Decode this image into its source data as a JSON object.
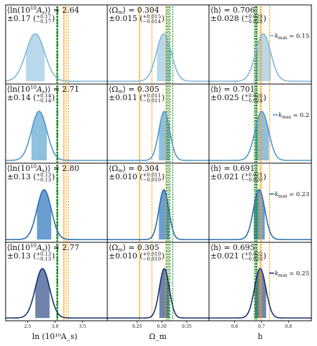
{
  "chart_data": {
    "type": "posterior-grid",
    "rows": [
      {
        "kmax_label": "0.15",
        "fill_color": "#b9d8ec",
        "line_color": "#7fb6d6",
        "panels": [
          {
            "stat_line1_prefix": "⟨ln(10",
            "stat_line1_value": "2.64",
            "stat_line2": "±0.17",
            "ci_upper": "+0.17",
            "ci_lower": "−0.17",
            "mean": 2.64,
            "sigma": 0.17,
            "ci_low": 2.47,
            "ci_high": 2.81
          },
          {
            "stat_line1_prefix": "⟨Ω",
            "stat_line1_value": "0.304",
            "stat_line2": "±0.015",
            "ci_upper": "+0.015",
            "ci_lower": "−0.014",
            "mean": 0.304,
            "sigma": 0.015,
            "ci_low": 0.29,
            "ci_high": 0.319
          },
          {
            "stat_line1_prefix": "⟨h⟩",
            "stat_line1_value": "0.706",
            "stat_line2": "±0.028",
            "ci_upper": "+0.029",
            "ci_lower": "−0.028",
            "mean": 0.706,
            "sigma": 0.028,
            "ci_low": 0.678,
            "ci_high": 0.735
          }
        ]
      },
      {
        "kmax_label": "0.2",
        "fill_color": "#8fc0e0",
        "line_color": "#4d97c9",
        "panels": [
          {
            "stat_line1_prefix": "⟨ln(10",
            "stat_line1_value": "2.71",
            "stat_line2": "±0.14",
            "ci_upper": "+0.14",
            "ci_lower": "−0.14",
            "mean": 2.71,
            "sigma": 0.14,
            "ci_low": 2.57,
            "ci_high": 2.85
          },
          {
            "stat_line1_prefix": "⟨Ω",
            "stat_line1_value": "0.305",
            "stat_line2": "±0.011",
            "ci_upper": "+0.011",
            "ci_lower": "−0.011",
            "mean": 0.305,
            "sigma": 0.011,
            "ci_low": 0.294,
            "ci_high": 0.316
          },
          {
            "stat_line1_prefix": "⟨h⟩",
            "stat_line1_value": "0.701",
            "stat_line2": "±0.025",
            "ci_upper": "+0.026",
            "ci_lower": "−0.024",
            "mean": 0.701,
            "sigma": 0.025,
            "ci_low": 0.677,
            "ci_high": 0.727
          }
        ]
      },
      {
        "kmax_label": "0.23",
        "fill_color": "#6b9ed0",
        "line_color": "#2a6bb0",
        "panels": [
          {
            "stat_line1_prefix": "⟨ln(10",
            "stat_line1_value": "2.80",
            "stat_line2": "±0.13",
            "ci_upper": "+0.13",
            "ci_lower": "−0.13",
            "mean": 2.8,
            "sigma": 0.13,
            "ci_low": 2.67,
            "ci_high": 2.93
          },
          {
            "stat_line1_prefix": "⟨Ω",
            "stat_line1_value": "0.304",
            "stat_line2": "±0.010",
            "ci_upper": "+0.011",
            "ci_lower": "−0.010",
            "mean": 0.304,
            "sigma": 0.01,
            "ci_low": 0.294,
            "ci_high": 0.315
          },
          {
            "stat_line1_prefix": "⟨h⟩",
            "stat_line1_value": "0.691",
            "stat_line2": "±0.021",
            "ci_upper": "+0.021",
            "ci_lower": "−0.020",
            "mean": 0.691,
            "sigma": 0.021,
            "ci_low": 0.671,
            "ci_high": 0.712
          }
        ]
      },
      {
        "kmax_label": "0.25",
        "fill_color": "#6f83ad",
        "line_color": "#13306b",
        "panels": [
          {
            "stat_line1_prefix": "⟨ln(10",
            "stat_line1_value": "2.77",
            "stat_line2": "±0.13",
            "ci_upper": "+0.13",
            "ci_lower": "−0.13",
            "mean": 2.77,
            "sigma": 0.13,
            "ci_low": 2.64,
            "ci_high": 2.9
          },
          {
            "stat_line1_prefix": "⟨Ω",
            "stat_line1_value": "0.305",
            "stat_line2": "±0.010",
            "ci_upper": "+0.010",
            "ci_lower": "−0.010",
            "mean": 0.305,
            "sigma": 0.01,
            "ci_low": 0.295,
            "ci_high": 0.315
          },
          {
            "stat_line1_prefix": "⟨h⟩",
            "stat_line1_value": "0.695",
            "stat_line2": "±0.021",
            "ci_upper": "+0.022",
            "ci_lower": "−0.020",
            "mean": 0.695,
            "sigma": 0.021,
            "ci_low": 0.675,
            "ci_high": 0.717
          }
        ]
      }
    ],
    "columns": [
      {
        "xlabel": "ln (10¹⁰A_s)",
        "xlim": [
          2.1,
          3.95
        ],
        "ticks": [
          2.5,
          3.0,
          3.5
        ],
        "tick_labels": [
          "2.5",
          "3.0",
          "3.5"
        ],
        "green_lines": [
          3.03,
          3.04,
          3.045,
          3.05
        ],
        "orange_lines": [
          3.16,
          3.2,
          3.24
        ]
      },
      {
        "xlabel": "Ω_m",
        "xlim": [
          0.19,
          0.395
        ],
        "ticks": [
          0.25,
          0.3,
          0.35
        ],
        "tick_labels": [
          "0.25",
          "0.30",
          "0.35"
        ],
        "green_lines": [
          0.31,
          0.313,
          0.316,
          0.322
        ],
        "orange_lines": [
          0.255,
          0.28,
          0.308
        ]
      },
      {
        "xlabel": "h",
        "xlim": [
          0.505,
          0.885
        ],
        "ticks": [
          0.6,
          0.7,
          0.8
        ],
        "tick_labels": [
          "0.6",
          "0.7",
          "0.8"
        ],
        "green_lines": [
          0.674,
          0.678,
          0.681,
          0.684
        ],
        "orange_lines": [
          0.695,
          0.7,
          0.73
        ]
      }
    ],
    "green_color": "#1a8a1a",
    "orange_color": "#f5a31a",
    "kmax_prefix": "k",
    "kmax_sub": "max"
  }
}
